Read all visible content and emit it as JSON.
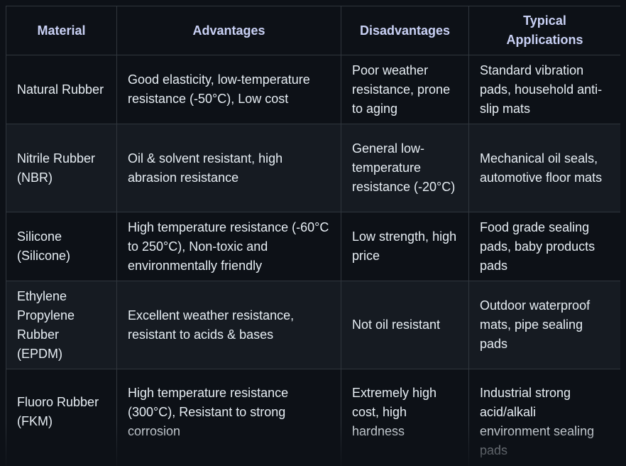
{
  "headers": {
    "material": "Material",
    "advantages": "Advantages",
    "disadvantages": "Disadvantages",
    "applications_line1": "Typical",
    "applications_line2": "Applications"
  },
  "rows": [
    {
      "material": "Natural Rubber",
      "advantages": "Good elasticity, low-temperature resistance (-50°C), Low cost",
      "disadvantages": "Poor weather resistance, prone to aging",
      "applications": "Standard vibration pads, household anti-slip mats"
    },
    {
      "material": "Nitrile Rubber (NBR)",
      "advantages": "Oil & solvent resistant, high abrasion resistance",
      "disadvantages": "General low-temperature resistance (-20°C)",
      "applications": "Mechanical oil seals, automotive floor mats"
    },
    {
      "material": "Silicone (Silicone)",
      "advantages": "High temperature resistance (-60°C to 250°C), Non-toxic and environmentally friendly",
      "disadvantages": "Low strength, high price",
      "applications": "Food grade sealing pads, baby products pads"
    },
    {
      "material": "Ethylene Propylene Rubber (EPDM)",
      "advantages": "Excellent weather resistance, resistant to acids & bases",
      "disadvantages": "Not oil resistant",
      "applications": "Outdoor waterproof mats, pipe sealing pads"
    },
    {
      "material": "Fluoro Rubber (FKM)",
      "advantages": "High temperature resistance (300°C), Resistant to strong corrosion",
      "disadvantages": "Extremely high cost, high hardness",
      "applications": "Industrial strong acid/alkali environment sealing pads"
    }
  ]
}
